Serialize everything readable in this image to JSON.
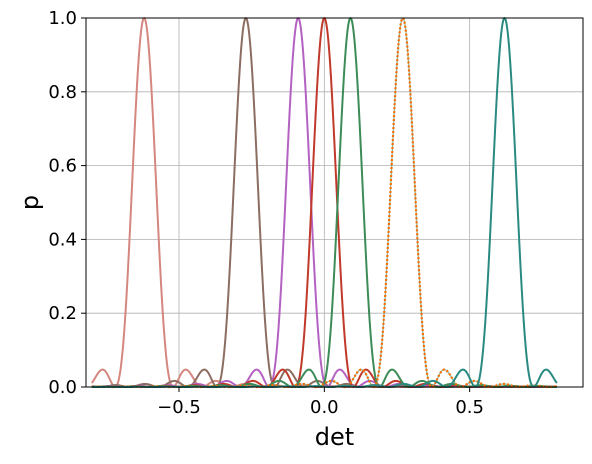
{
  "chart_data": {
    "type": "line",
    "title": "",
    "xlabel": "det",
    "ylabel": "p",
    "xlim": [
      -0.82,
      0.89
    ],
    "ylim": [
      0.0,
      1.0
    ],
    "x_range": [
      -0.8,
      0.8
    ],
    "x_ticks": [
      -0.5,
      0.0,
      0.5
    ],
    "x_tick_labels": [
      "−0.5",
      "0.0",
      "0.5"
    ],
    "y_ticks": [
      0.0,
      0.2,
      0.4,
      0.6,
      0.8,
      1.0
    ],
    "y_tick_labels": [
      "0.0",
      "0.2",
      "0.4",
      "0.6",
      "0.8",
      "1.0"
    ],
    "grid": true,
    "legend": "none",
    "sinc_width": 0.1,
    "series": [
      {
        "center": -0.62,
        "color": "#d4877f",
        "style": "solid"
      },
      {
        "center": -0.27,
        "color": "#8c6d62",
        "style": "solid"
      },
      {
        "center": -0.09,
        "color": "#b462c2",
        "style": "solid"
      },
      {
        "center": 0.0,
        "color": "#c0392b",
        "style": "solid"
      },
      {
        "center": 0.09,
        "color": "#3d8b57",
        "style": "solid"
      },
      {
        "center": 0.27,
        "color": "#ff6a00",
        "style": "dotted"
      },
      {
        "center": 0.62,
        "color": "#2a8a82",
        "style": "solid"
      }
    ]
  }
}
